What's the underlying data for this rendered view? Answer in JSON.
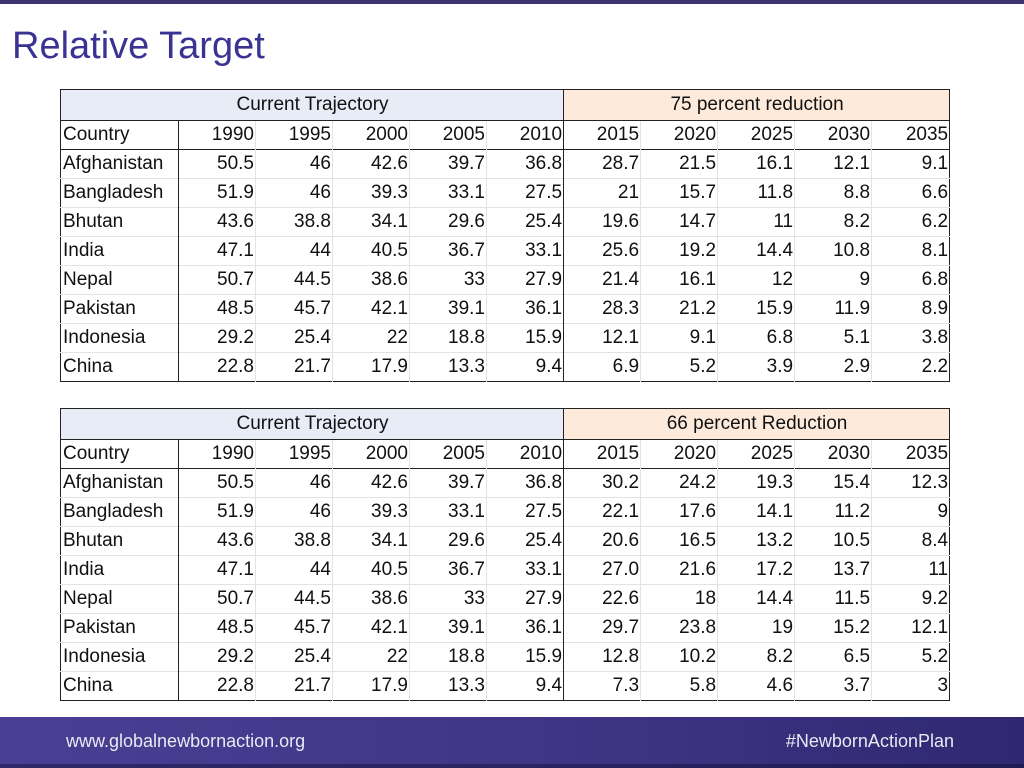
{
  "title": "Relative Target",
  "tables": [
    {
      "group_left": "Current Trajectory",
      "group_right": "75 percent reduction",
      "columns": [
        "Country",
        "1990",
        "1995",
        "2000",
        "2005",
        "2010",
        "2015",
        "2020",
        "2025",
        "2030",
        "2035"
      ],
      "rows": [
        [
          "Afghanistan",
          "50.5",
          "46",
          "42.6",
          "39.7",
          "36.8",
          "28.7",
          "21.5",
          "16.1",
          "12.1",
          "9.1"
        ],
        [
          "Bangladesh",
          "51.9",
          "46",
          "39.3",
          "33.1",
          "27.5",
          "21",
          "15.7",
          "11.8",
          "8.8",
          "6.6"
        ],
        [
          "Bhutan",
          "43.6",
          "38.8",
          "34.1",
          "29.6",
          "25.4",
          "19.6",
          "14.7",
          "11",
          "8.2",
          "6.2"
        ],
        [
          "India",
          "47.1",
          "44",
          "40.5",
          "36.7",
          "33.1",
          "25.6",
          "19.2",
          "14.4",
          "10.8",
          "8.1"
        ],
        [
          "Nepal",
          "50.7",
          "44.5",
          "38.6",
          "33",
          "27.9",
          "21.4",
          "16.1",
          "12",
          "9",
          "6.8"
        ],
        [
          "Pakistan",
          "48.5",
          "45.7",
          "42.1",
          "39.1",
          "36.1",
          "28.3",
          "21.2",
          "15.9",
          "11.9",
          "8.9"
        ],
        [
          "Indonesia",
          "29.2",
          "25.4",
          "22",
          "18.8",
          "15.9",
          "12.1",
          "9.1",
          "6.8",
          "5.1",
          "3.8"
        ],
        [
          "China",
          "22.8",
          "21.7",
          "17.9",
          "13.3",
          "9.4",
          "6.9",
          "5.2",
          "3.9",
          "2.9",
          "2.2"
        ]
      ]
    },
    {
      "group_left": "Current Trajectory",
      "group_right": "66 percent Reduction",
      "columns": [
        "Country",
        "1990",
        "1995",
        "2000",
        "2005",
        "2010",
        "2015",
        "2020",
        "2025",
        "2030",
        "2035"
      ],
      "rows": [
        [
          "Afghanistan",
          "50.5",
          "46",
          "42.6",
          "39.7",
          "36.8",
          "30.2",
          "24.2",
          "19.3",
          "15.4",
          "12.3"
        ],
        [
          "Bangladesh",
          "51.9",
          "46",
          "39.3",
          "33.1",
          "27.5",
          "22.1",
          "17.6",
          "14.1",
          "11.2",
          "9"
        ],
        [
          "Bhutan",
          "43.6",
          "38.8",
          "34.1",
          "29.6",
          "25.4",
          "20.6",
          "16.5",
          "13.2",
          "10.5",
          "8.4"
        ],
        [
          "India",
          "47.1",
          "44",
          "40.5",
          "36.7",
          "33.1",
          "27.0",
          "21.6",
          "17.2",
          "13.7",
          "11"
        ],
        [
          "Nepal",
          "50.7",
          "44.5",
          "38.6",
          "33",
          "27.9",
          "22.6",
          "18",
          "14.4",
          "11.5",
          "9.2"
        ],
        [
          "Pakistan",
          "48.5",
          "45.7",
          "42.1",
          "39.1",
          "36.1",
          "29.7",
          "23.8",
          "19",
          "15.2",
          "12.1"
        ],
        [
          "Indonesia",
          "29.2",
          "25.4",
          "22",
          "18.8",
          "15.9",
          "12.8",
          "10.2",
          "8.2",
          "6.5",
          "5.2"
        ],
        [
          "China",
          "22.8",
          "21.7",
          "17.9",
          "13.3",
          "9.4",
          "7.3",
          "5.8",
          "4.6",
          "3.7",
          "3"
        ]
      ]
    }
  ],
  "footer": {
    "url": "www.globalnewbornaction.org",
    "hashtag": "#NewbornActionPlan"
  },
  "colors": {
    "title": "#3b3393",
    "footer_bg": "#4a3f93",
    "trajectory_header_bg": "#e8ecf7",
    "reduction_header_bg": "#fdeadb"
  }
}
